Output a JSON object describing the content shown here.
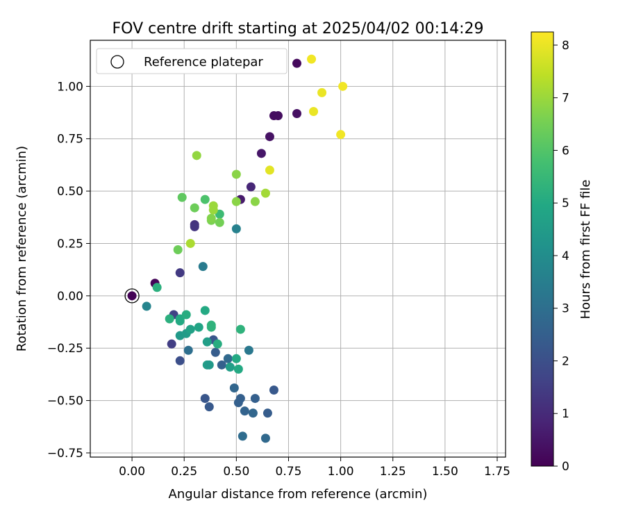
{
  "chart_data": {
    "type": "scatter",
    "title": "FOV centre drift starting at 2025/04/02 00:14:29",
    "xlabel": "Angular distance from reference (arcmin)",
    "ylabel": "Rotation from reference (arcmin)",
    "xlim": [
      -0.2,
      1.79
    ],
    "ylim": [
      -0.77,
      1.22
    ],
    "xticks": [
      "0.00",
      "0.25",
      "0.50",
      "0.75",
      "1.00",
      "1.25",
      "1.50",
      "1.75"
    ],
    "yticks": [
      "−0.75",
      "−0.50",
      "−0.25",
      "0.00",
      "0.25",
      "0.50",
      "0.75",
      "1.00"
    ],
    "grid": true,
    "legend": {
      "placement": "upper-left",
      "entries": [
        "Reference platepar"
      ]
    },
    "reference_point": {
      "x": 0.0,
      "y": 0.0
    },
    "colorbar": {
      "label": "Hours from first FF file",
      "min": 0,
      "max": 8.25,
      "ticks": [
        "0",
        "1",
        "2",
        "3",
        "4",
        "5",
        "6",
        "7",
        "8"
      ],
      "colormap": "viridis"
    },
    "series": [
      {
        "points": [
          [
            0.0,
            0.0,
            0.05
          ],
          [
            0.11,
            0.06,
            0.1
          ],
          [
            0.79,
            1.11,
            0.2
          ],
          [
            0.68,
            0.86,
            0.3
          ],
          [
            0.7,
            0.86,
            0.3
          ],
          [
            0.79,
            0.87,
            0.35
          ],
          [
            0.66,
            0.76,
            0.4
          ],
          [
            0.62,
            0.68,
            0.5
          ],
          [
            0.52,
            0.46,
            0.6
          ],
          [
            0.57,
            0.52,
            0.9
          ],
          [
            0.3,
            0.34,
            1.2
          ],
          [
            0.3,
            0.33,
            1.3
          ],
          [
            0.23,
            0.11,
            1.4
          ],
          [
            0.2,
            -0.09,
            1.6
          ],
          [
            0.19,
            -0.23,
            1.5
          ],
          [
            0.23,
            -0.31,
            2.0
          ],
          [
            0.35,
            -0.49,
            2.2
          ],
          [
            0.37,
            -0.53,
            2.3
          ],
          [
            0.68,
            -0.45,
            2.3
          ],
          [
            0.65,
            -0.56,
            2.4
          ],
          [
            0.59,
            -0.49,
            2.5
          ],
          [
            0.51,
            -0.51,
            2.5
          ],
          [
            0.52,
            -0.49,
            2.5
          ],
          [
            0.54,
            -0.55,
            2.6
          ],
          [
            0.58,
            -0.56,
            2.7
          ],
          [
            0.64,
            -0.68,
            2.8
          ],
          [
            0.53,
            -0.67,
            2.9
          ],
          [
            0.49,
            -0.44,
            2.7
          ],
          [
            0.43,
            -0.33,
            2.5
          ],
          [
            0.46,
            -0.3,
            2.8
          ],
          [
            0.4,
            -0.27,
            2.4
          ],
          [
            0.39,
            -0.21,
            2.2
          ],
          [
            0.27,
            -0.26,
            3.0
          ],
          [
            0.56,
            -0.26,
            3.3
          ],
          [
            0.34,
            0.14,
            3.4
          ],
          [
            0.5,
            0.32,
            3.6
          ],
          [
            0.07,
            -0.05,
            3.7
          ],
          [
            0.36,
            -0.33,
            4.6
          ],
          [
            0.37,
            -0.33,
            4.4
          ],
          [
            0.47,
            -0.34,
            4.6
          ],
          [
            0.51,
            -0.35,
            5.0
          ],
          [
            0.5,
            -0.3,
            5.0
          ],
          [
            0.41,
            -0.23,
            5.1
          ],
          [
            0.36,
            -0.22,
            4.6
          ],
          [
            0.23,
            -0.19,
            4.4
          ],
          [
            0.26,
            -0.18,
            4.5
          ],
          [
            0.28,
            -0.16,
            4.7
          ],
          [
            0.32,
            -0.15,
            4.8
          ],
          [
            0.23,
            -0.12,
            5.0
          ],
          [
            0.18,
            -0.11,
            5.2
          ],
          [
            0.23,
            -0.11,
            5.0
          ],
          [
            0.26,
            -0.09,
            5.1
          ],
          [
            0.35,
            -0.07,
            5.0
          ],
          [
            0.38,
            -0.14,
            5.3
          ],
          [
            0.38,
            -0.15,
            5.3
          ],
          [
            0.52,
            -0.16,
            5.3
          ],
          [
            0.12,
            0.04,
            5.2
          ],
          [
            0.42,
            0.39,
            5.6
          ],
          [
            0.35,
            0.46,
            5.9
          ],
          [
            0.24,
            0.47,
            6.2
          ],
          [
            0.3,
            0.42,
            6.4
          ],
          [
            0.22,
            0.22,
            6.4
          ],
          [
            0.42,
            0.35,
            6.5
          ],
          [
            0.38,
            0.36,
            6.6
          ],
          [
            0.38,
            0.37,
            6.7
          ],
          [
            0.39,
            0.43,
            7.0
          ],
          [
            0.39,
            0.41,
            7.0
          ],
          [
            0.5,
            0.45,
            6.8
          ],
          [
            0.59,
            0.45,
            6.8
          ],
          [
            0.5,
            0.58,
            6.8
          ],
          [
            0.31,
            0.67,
            6.9
          ],
          [
            0.28,
            0.25,
            7.2
          ],
          [
            0.64,
            0.49,
            7.1
          ],
          [
            0.66,
            0.6,
            7.9
          ],
          [
            0.86,
            1.13,
            8.1
          ],
          [
            1.01,
            1.0,
            8.1
          ],
          [
            0.91,
            0.97,
            8.0
          ],
          [
            0.87,
            0.88,
            8.0
          ],
          [
            1.0,
            0.77,
            8.1
          ]
        ]
      }
    ]
  }
}
